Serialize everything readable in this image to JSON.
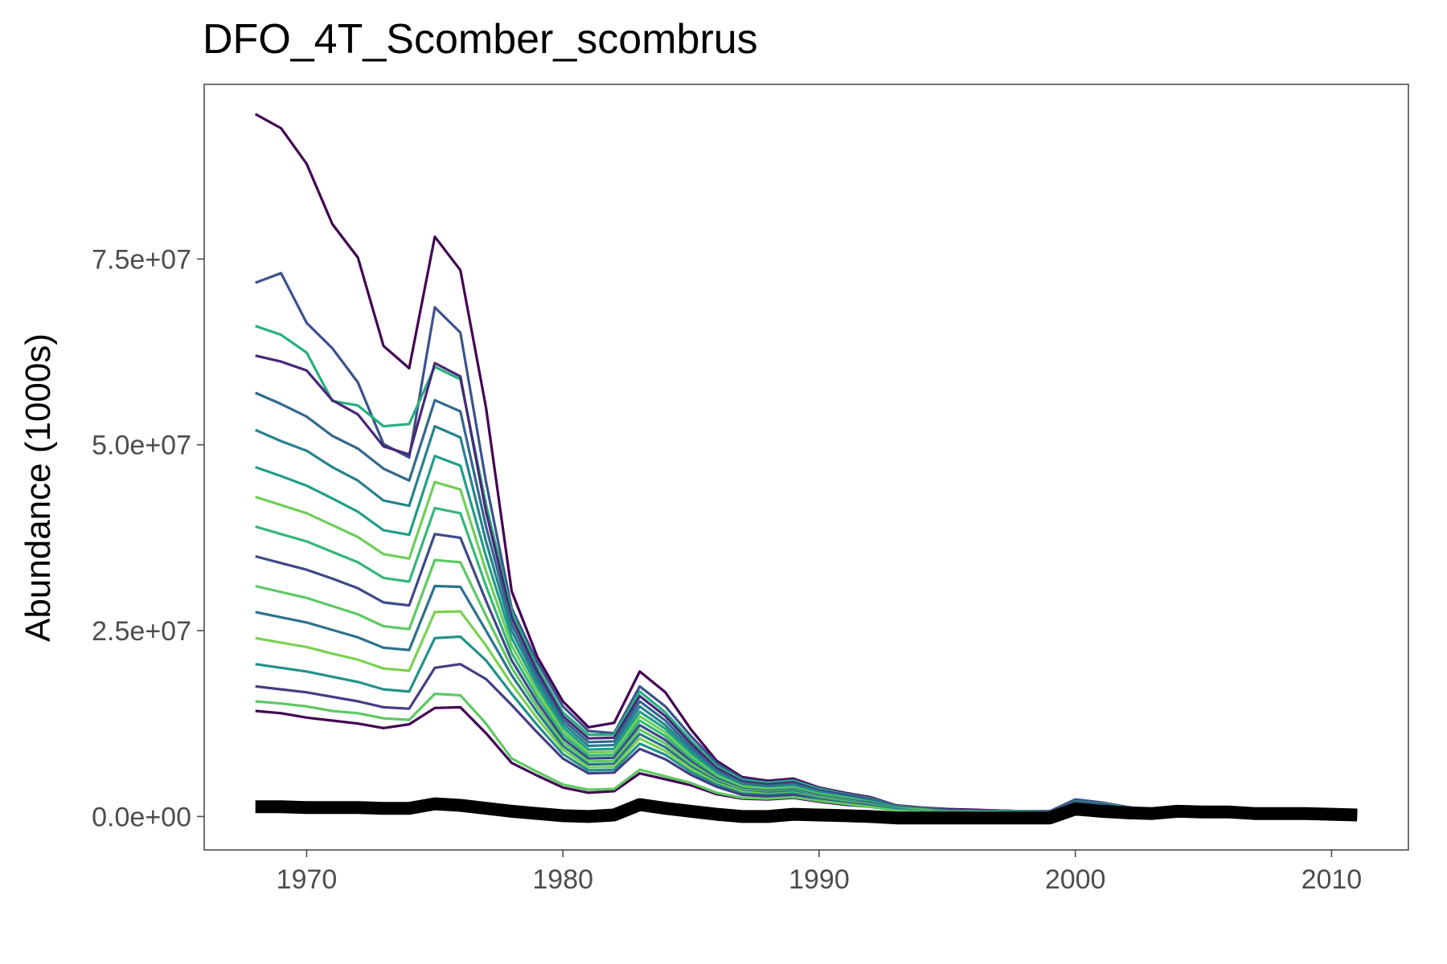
{
  "chart_data": {
    "type": "line",
    "title": "DFO_4T_Scomber_scombrus",
    "xlabel": "",
    "ylabel": "Abundance (1000s)",
    "xlim": [
      1966,
      2013
    ],
    "ylim": [
      -4500000,
      98500000
    ],
    "xticks": [
      1970,
      1980,
      1990,
      2000,
      2010
    ],
    "xtick_labels": [
      "1970",
      "1980",
      "1990",
      "2000",
      "2010"
    ],
    "yticks": [
      0,
      25000000,
      50000000,
      75000000
    ],
    "ytick_labels": [
      "0.0e+00",
      "2.5e+07",
      "5.0e+07",
      "7.5e+07"
    ],
    "grid": false,
    "legend": "none",
    "colors": {
      "palette_low": "#440154",
      "palette_mid": "#21918c",
      "palette_high": "#5ec962",
      "observed": "#000000",
      "panel_border": "#4d4d4d"
    },
    "x": [
      1968,
      1969,
      1970,
      1971,
      1972,
      1973,
      1974,
      1975,
      1976,
      1977,
      1978,
      1979,
      1980,
      1981,
      1982,
      1983,
      1984,
      1985,
      1986,
      1987,
      1988,
      1989,
      1990,
      1991,
      1992,
      1993,
      1994,
      1995,
      1996,
      1997,
      1998,
      1999,
      2000,
      2001,
      2002,
      2003,
      2004,
      2005,
      2006,
      2007,
      2008,
      2009,
      2010,
      2011
    ],
    "series": [
      {
        "values": [
          94500000,
          92600000,
          87800000,
          79700000,
          75200000,
          63300000,
          60300000,
          78000000,
          73500000,
          55000000,
          30300000,
          21500000,
          15500000,
          12000000,
          12600000,
          19500000,
          16700000,
          11700000,
          7500000,
          5300000,
          4800000,
          5100000,
          3900000,
          3200000,
          2600000,
          1500000,
          1200000,
          1000000,
          900000,
          800000,
          700000,
          700000,
          2100000,
          1800000,
          1200000,
          800000,
          700000,
          600000,
          600000,
          500000,
          500000,
          500000,
          400000,
          300000
        ],
        "color": "#440154"
      },
      {
        "values": [
          71800000,
          73100000,
          66400000,
          63000000,
          58400000,
          50100000,
          48300000,
          68500000,
          65100000,
          45000000,
          28000000,
          20800000,
          14800000,
          11500000,
          11200000,
          17500000,
          14800000,
          10800000,
          7200000,
          5100000,
          4600000,
          4900000,
          3800000,
          3100000,
          2500000,
          1400000,
          1100000,
          900000,
          800000,
          800000,
          700000,
          700000,
          2300000,
          1900000,
          1300000,
          800000,
          700000,
          600000,
          600000,
          500000,
          500000,
          500000,
          400000,
          300000
        ],
        "color": "#3b528b"
      },
      {
        "values": [
          66000000,
          64800000,
          62400000,
          55900000,
          55300000,
          52500000,
          52800000,
          60500000,
          58800000,
          42000000,
          27500000,
          20000000,
          14000000,
          11000000,
          11000000,
          16800000,
          14000000,
          10200000,
          6800000,
          4900000,
          4500000,
          4800000,
          3700000,
          3000000,
          2400000,
          1400000,
          1100000,
          900000,
          800000,
          700000,
          700000,
          600000,
          2000000,
          1700000,
          1200000,
          800000,
          700000,
          600000,
          500000,
          500000,
          500000,
          400000,
          400000,
          300000
        ],
        "color": "#28ae80"
      },
      {
        "values": [
          62000000,
          61200000,
          60000000,
          56000000,
          54100000,
          49800000,
          48700000,
          61000000,
          59200000,
          41000000,
          26800000,
          19500000,
          13500000,
          10500000,
          10600000,
          16200000,
          13500000,
          9800000,
          6500000,
          4700000,
          4300000,
          4600000,
          3500000,
          2900000,
          2300000,
          1300000,
          1000000,
          900000,
          800000,
          700000,
          600000,
          600000,
          1900000,
          1600000,
          1100000,
          700000,
          600000,
          500000,
          500000,
          500000,
          400000,
          400000,
          300000,
          300000
        ],
        "color": "#482878"
      },
      {
        "values": [
          57000000,
          55500000,
          53800000,
          51200000,
          49500000,
          46800000,
          45200000,
          56000000,
          54500000,
          39000000,
          25900000,
          18800000,
          13000000,
          10000000,
          10100000,
          15500000,
          12900000,
          9300000,
          6200000,
          4500000,
          4100000,
          4400000,
          3400000,
          2800000,
          2200000,
          1300000,
          1000000,
          800000,
          700000,
          700000,
          600000,
          600000,
          1800000,
          1500000,
          1000000,
          700000,
          600000,
          500000,
          500000,
          400000,
          400000,
          400000,
          300000,
          300000
        ],
        "color": "#31688e"
      },
      {
        "values": [
          52000000,
          50500000,
          49200000,
          47000000,
          45200000,
          42500000,
          41800000,
          52500000,
          51000000,
          37000000,
          25000000,
          18200000,
          12500000,
          9500000,
          9600000,
          14800000,
          12300000,
          8900000,
          5900000,
          4300000,
          3900000,
          4200000,
          3300000,
          2700000,
          2100000,
          1200000,
          900000,
          800000,
          700000,
          600000,
          600000,
          500000,
          1700000,
          1400000,
          1000000,
          700000,
          600000,
          500000,
          400000,
          400000,
          400000,
          300000,
          300000,
          300000
        ],
        "color": "#26828e"
      },
      {
        "values": [
          47000000,
          45800000,
          44500000,
          42800000,
          41000000,
          38500000,
          37900000,
          48500000,
          47200000,
          35000000,
          24000000,
          17500000,
          12000000,
          9000000,
          9100000,
          14100000,
          11800000,
          8500000,
          5700000,
          4100000,
          3800000,
          4000000,
          3100000,
          2600000,
          2000000,
          1200000,
          900000,
          800000,
          700000,
          600000,
          500000,
          500000,
          1600000,
          1400000,
          900000,
          600000,
          500000,
          500000,
          400000,
          400000,
          400000,
          300000,
          300000,
          200000
        ],
        "color": "#1f9e89"
      },
      {
        "values": [
          43000000,
          41900000,
          40800000,
          39200000,
          37600000,
          35300000,
          34700000,
          45000000,
          44000000,
          33000000,
          23000000,
          16800000,
          11500000,
          8600000,
          8700000,
          13500000,
          11300000,
          8100000,
          5500000,
          4000000,
          3700000,
          3900000,
          3000000,
          2500000,
          1900000,
          1100000,
          900000,
          700000,
          600000,
          600000,
          500000,
          500000,
          1600000,
          1300000,
          900000,
          600000,
          500000,
          400000,
          400000,
          400000,
          300000,
          300000,
          300000,
          200000
        ],
        "color": "#6ece58"
      },
      {
        "values": [
          39000000,
          38000000,
          37000000,
          35600000,
          34200000,
          32100000,
          31600000,
          41500000,
          40800000,
          31000000,
          22000000,
          16100000,
          11000000,
          8200000,
          8300000,
          12900000,
          10800000,
          7800000,
          5300000,
          3800000,
          3500000,
          3800000,
          2900000,
          2400000,
          1900000,
          1100000,
          800000,
          700000,
          600000,
          600000,
          500000,
          500000,
          1500000,
          1300000,
          900000,
          600000,
          500000,
          400000,
          400000,
          300000,
          300000,
          300000,
          300000,
          200000
        ],
        "color": "#35b779"
      },
      {
        "values": [
          35000000,
          34100000,
          33200000,
          32000000,
          30700000,
          28800000,
          28400000,
          38000000,
          37500000,
          29000000,
          21000000,
          15400000,
          10500000,
          7800000,
          7900000,
          12300000,
          10300000,
          7400000,
          5100000,
          3700000,
          3400000,
          3600000,
          2800000,
          2300000,
          1800000,
          1000000,
          800000,
          700000,
          600000,
          500000,
          500000,
          400000,
          1400000,
          1200000,
          800000,
          600000,
          500000,
          400000,
          400000,
          300000,
          300000,
          300000,
          200000,
          200000
        ],
        "color": "#3e4989"
      },
      {
        "values": [
          31000000,
          30200000,
          29400000,
          28300000,
          27200000,
          25600000,
          25200000,
          34500000,
          34200000,
          27000000,
          20000000,
          14700000,
          10000000,
          7400000,
          7500000,
          11700000,
          9800000,
          7100000,
          4900000,
          3600000,
          3300000,
          3500000,
          2700000,
          2200000,
          1700000,
          1000000,
          800000,
          600000,
          600000,
          500000,
          500000,
          400000,
          1400000,
          1100000,
          800000,
          500000,
          500000,
          400000,
          300000,
          300000,
          300000,
          300000,
          200000,
          200000
        ],
        "color": "#5ec962"
      },
      {
        "values": [
          27500000,
          26800000,
          26100000,
          25100000,
          24100000,
          22700000,
          22400000,
          31000000,
          30900000,
          25000000,
          19000000,
          14000000,
          9500000,
          7000000,
          7100000,
          11100000,
          9300000,
          6700000,
          4700000,
          3400000,
          3200000,
          3400000,
          2600000,
          2100000,
          1700000,
          1000000,
          700000,
          600000,
          500000,
          500000,
          400000,
          400000,
          1300000,
          1100000,
          800000,
          500000,
          400000,
          400000,
          300000,
          300000,
          300000,
          200000,
          200000,
          200000
        ],
        "color": "#2c728e"
      },
      {
        "values": [
          24000000,
          23400000,
          22800000,
          21900000,
          21100000,
          19900000,
          19600000,
          27500000,
          27600000,
          23000000,
          17800000,
          13200000,
          9000000,
          6600000,
          6700000,
          10500000,
          8800000,
          6400000,
          4500000,
          3300000,
          3000000,
          3200000,
          2500000,
          2000000,
          1600000,
          900000,
          700000,
          600000,
          500000,
          500000,
          400000,
          400000,
          1200000,
          1000000,
          700000,
          500000,
          400000,
          300000,
          300000,
          300000,
          200000,
          200000,
          200000,
          200000
        ],
        "color": "#7ad151"
      },
      {
        "values": [
          20500000,
          20000000,
          19500000,
          18800000,
          18100000,
          17100000,
          16800000,
          24000000,
          24200000,
          21000000,
          16500000,
          12300000,
          8400000,
          6200000,
          6300000,
          9800000,
          8300000,
          6000000,
          4300000,
          3100000,
          2900000,
          3100000,
          2400000,
          1900000,
          1500000,
          900000,
          700000,
          500000,
          500000,
          400000,
          400000,
          400000,
          1200000,
          1000000,
          700000,
          500000,
          400000,
          300000,
          300000,
          200000,
          200000,
          200000,
          200000,
          200000
        ],
        "color": "#21918c"
      },
      {
        "values": [
          17500000,
          17100000,
          16700000,
          16100000,
          15500000,
          14700000,
          14500000,
          20000000,
          20500000,
          18500000,
          15000000,
          11300000,
          7800000,
          5800000,
          5900000,
          9100000,
          7700000,
          5600000,
          4000000,
          2900000,
          2700000,
          2900000,
          2200000,
          1800000,
          1400000,
          800000,
          600000,
          500000,
          400000,
          400000,
          400000,
          300000,
          1100000,
          900000,
          700000,
          400000,
          400000,
          300000,
          300000,
          200000,
          200000,
          200000,
          200000,
          100000
        ],
        "color": "#433e85"
      },
      {
        "values": [
          14200000,
          13900000,
          13300000,
          12900000,
          12500000,
          11900000,
          12400000,
          14600000,
          14700000,
          11200000,
          7200000,
          5500000,
          3900000,
          3200000,
          3400000,
          5800000,
          5000000,
          4200000,
          3000000,
          2400000,
          2300000,
          2500000,
          2000000,
          1600000,
          1300000,
          800000,
          600000,
          500000,
          400000,
          400000,
          300000,
          300000,
          1000000,
          900000,
          600000,
          400000,
          300000,
          300000,
          200000,
          200000,
          200000,
          200000,
          200000,
          100000
        ],
        "color": "#440154"
      },
      {
        "values": [
          15500000,
          15200000,
          14800000,
          14200000,
          13900000,
          13200000,
          13000000,
          16500000,
          16300000,
          12500000,
          7800000,
          6000000,
          4300000,
          3600000,
          3700000,
          6300000,
          5400000,
          4500000,
          3200000,
          2500000,
          2400000,
          2600000,
          2100000,
          1700000,
          1300000,
          800000,
          600000,
          500000,
          400000,
          400000,
          300000,
          300000,
          1000000,
          900000,
          600000,
          400000,
          300000,
          300000,
          200000,
          200000,
          200000,
          200000,
          200000,
          100000
        ],
        "color": "#5ec962"
      }
    ],
    "observed": {
      "name": "",
      "values": [
        1300000,
        1300000,
        1200000,
        1200000,
        1200000,
        1100000,
        1100000,
        1700000,
        1500000,
        1100000,
        700000,
        400000,
        100000,
        0,
        200000,
        1600000,
        1100000,
        700000,
        300000,
        0,
        0,
        300000,
        200000,
        100000,
        0,
        -200000,
        -200000,
        -200000,
        -200000,
        -200000,
        -200000,
        -200000,
        1000000,
        700000,
        500000,
        400000,
        700000,
        600000,
        600000,
        400000,
        400000,
        400000,
        300000,
        200000
      ],
      "color": "#000000"
    }
  }
}
